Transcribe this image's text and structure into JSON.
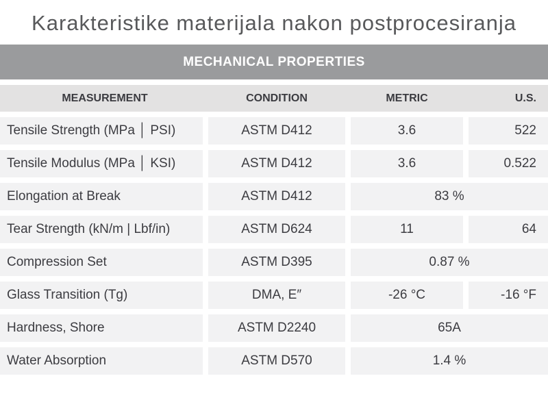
{
  "title": "Karakteristike materijala nakon postprocesiranja",
  "table": {
    "header_bar": "MECHANICAL PROPERTIES",
    "columns": [
      "MEASUREMENT",
      "CONDITION",
      "METRIC",
      "U.S."
    ],
    "rows": [
      {
        "measurement": "Tensile Strength (MPa │ PSI)",
        "condition": "ASTM D412",
        "metric": "3.6",
        "us": "522"
      },
      {
        "measurement": "Tensile Modulus (MPa │ KSI)",
        "condition": "ASTM D412",
        "metric": "3.6",
        "us": "0.522"
      },
      {
        "measurement": "Elongation at Break",
        "condition": "ASTM D412",
        "combined": "83 %"
      },
      {
        "measurement": "Tear Strength (kN/m | Lbf/in)",
        "condition": "ASTM D624",
        "metric": "11",
        "us": "64"
      },
      {
        "measurement": "Compression Set",
        "condition": "ASTM D395",
        "combined": "0.87 %"
      },
      {
        "measurement": "Glass Transition (Tg)",
        "condition": "DMA, E″",
        "metric": "-26 °C",
        "us": "-16 °F"
      },
      {
        "measurement": "Hardness, Shore",
        "condition": "ASTM D2240",
        "combined": "65A"
      },
      {
        "measurement": "Water Absorption",
        "condition": "ASTM D570",
        "combined": "1.4 %"
      }
    ]
  },
  "colors": {
    "header_bar_bg": "#9a9b9d",
    "header_bar_text": "#ffffff",
    "column_header_bg": "#e3e2e2",
    "row_bg": "#f2f2f3",
    "body_text": "#3c3c41",
    "title_text": "#58595b"
  }
}
